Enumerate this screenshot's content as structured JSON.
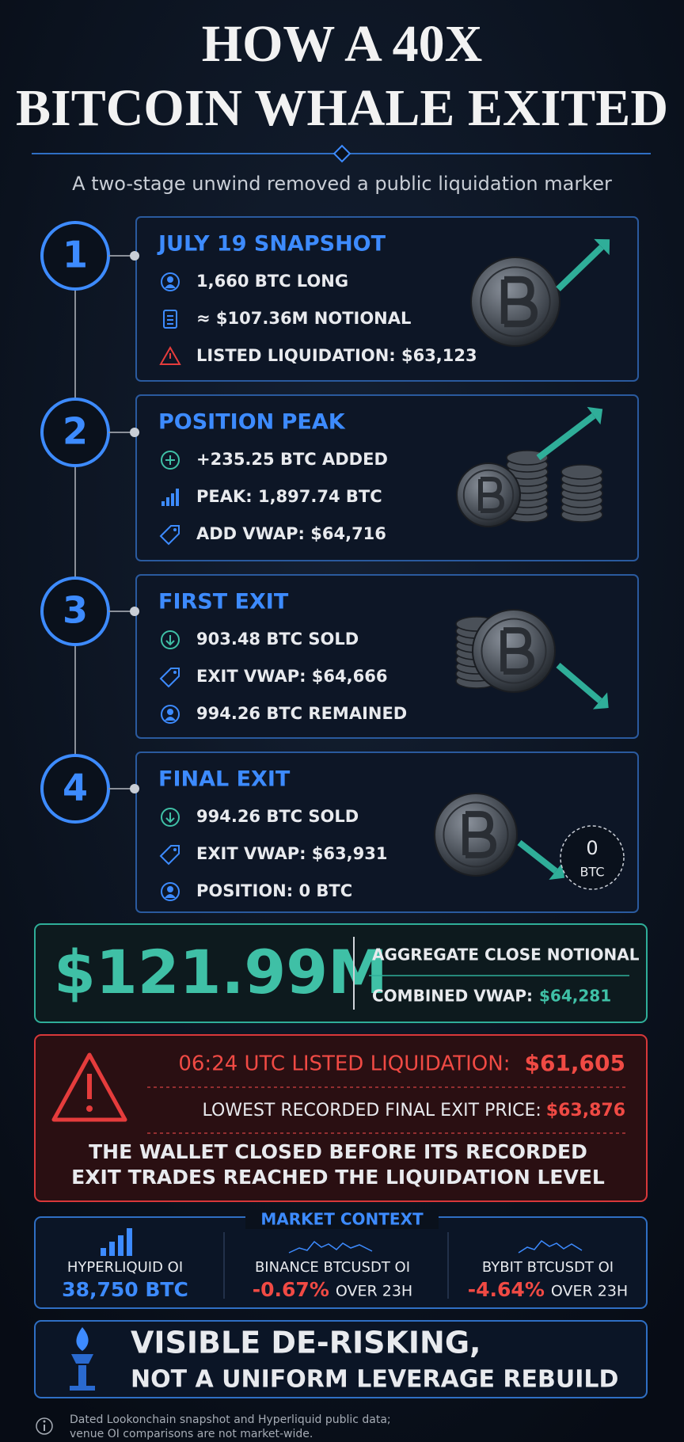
{
  "header": {
    "title_line1": "HOW A 40X",
    "title_line2": "BITCOIN WHALE EXITED",
    "subtitle": "A two-stage unwind removed a public liquidation marker"
  },
  "steps": [
    {
      "number": "1",
      "title": "JULY 19 SNAPSHOT",
      "items": [
        "1,660 BTC LONG",
        "≈ $107.36M NOTIONAL",
        "LISTED LIQUIDATION: $63,123"
      ]
    },
    {
      "number": "2",
      "title": "POSITION PEAK",
      "items": [
        "+235.25 BTC ADDED",
        "PEAK: 1,897.74 BTC",
        "ADD VWAP: $64,716"
      ]
    },
    {
      "number": "3",
      "title": "FIRST EXIT",
      "items": [
        "903.48 BTC SOLD",
        "EXIT VWAP: $64,666",
        "994.26 BTC REMAINED"
      ]
    },
    {
      "number": "4",
      "title": "FINAL EXIT",
      "items": [
        "994.26 BTC SOLD",
        "EXIT VWAP: $63,931",
        "POSITION: 0 BTC"
      ],
      "badge_value": "0",
      "badge_unit": "BTC"
    }
  ],
  "summary": {
    "amount": "$121.99M",
    "label": "AGGREGATE CLOSE NOTIONAL",
    "vwap_label": "COMBINED VWAP:",
    "vwap_value": "$64,281"
  },
  "warning": {
    "line1_label": "06:24 UTC LISTED LIQUIDATION:",
    "line1_value": "$61,605",
    "line2_label": "LOWEST RECORDED FINAL EXIT PRICE:",
    "line2_value": "$63,876",
    "note_line1": "THE WALLET CLOSED BEFORE ITS RECORDED",
    "note_line2": "EXIT TRADES REACHED THE LIQUIDATION LEVEL"
  },
  "market": {
    "title": "MARKET CONTEXT",
    "items": [
      {
        "label": "HYPERLIQUID OI",
        "value": "38,750 BTC"
      },
      {
        "label": "BINANCE BTCUSDT OI",
        "value": "-0.67%",
        "suffix": "OVER 23H"
      },
      {
        "label": "BYBIT BTCUSDT OI",
        "value": "-4.64%",
        "suffix": "OVER 23H"
      }
    ]
  },
  "conclusion": {
    "line1": "VISIBLE DE-RISKING,",
    "line2": "NOT A UNIFORM LEVERAGE REBUILD"
  },
  "footer": {
    "note_line1": "Dated Lookonchain snapshot and Hyperliquid public data;",
    "note_line2": "venue OI comparisons are not market-wide."
  }
}
